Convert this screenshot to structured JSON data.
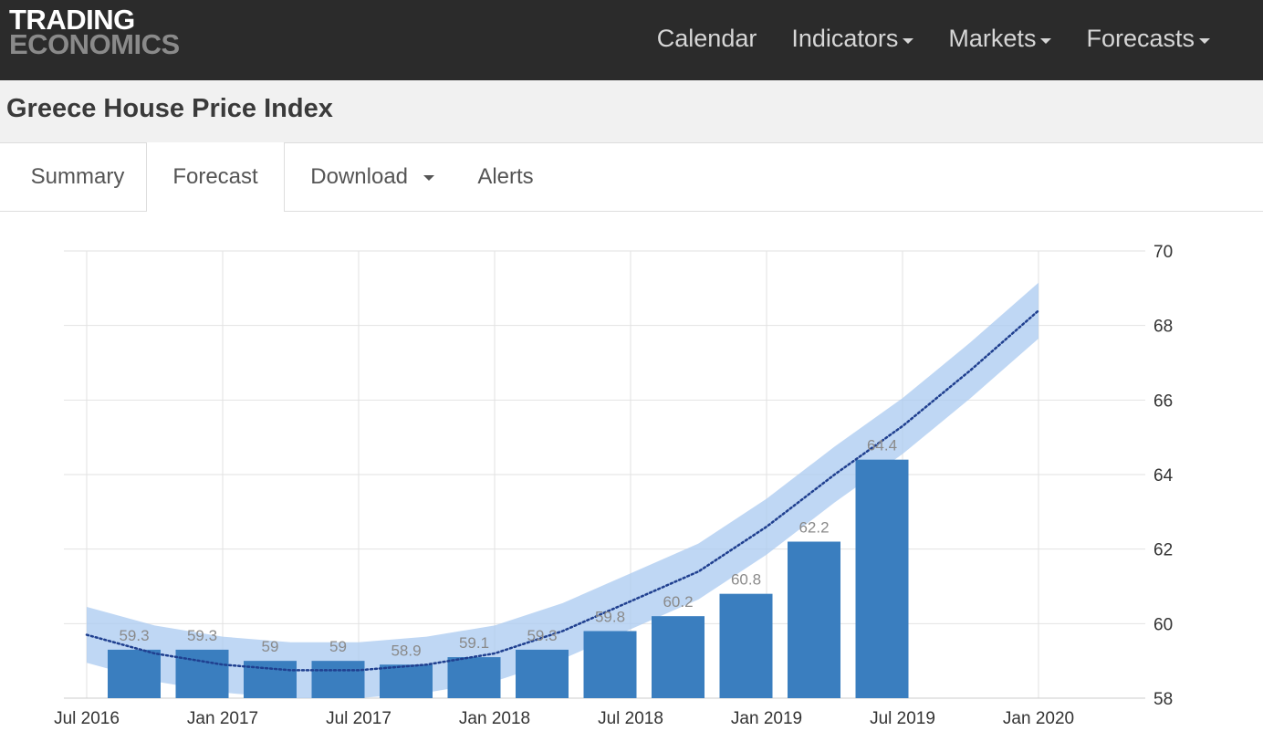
{
  "header": {
    "logo_top": "TRADING",
    "logo_bottom": "ECONOMICS",
    "nav": [
      {
        "label": "Calendar",
        "dropdown": false
      },
      {
        "label": "Indicators",
        "dropdown": true
      },
      {
        "label": "Markets",
        "dropdown": true
      },
      {
        "label": "Forecasts",
        "dropdown": true
      }
    ]
  },
  "page": {
    "title": "Greece House Price Index"
  },
  "tabs": [
    {
      "label": "Summary",
      "active": false
    },
    {
      "label": "Forecast",
      "active": true
    },
    {
      "label": "Download",
      "active": false,
      "dropdown": true
    },
    {
      "label": "Alerts",
      "active": false
    }
  ],
  "colors": {
    "bar": "#3a7ebf",
    "band": "#a9c9f0",
    "trend": "#1f3f8f",
    "grid": "#e2e2e2"
  },
  "chart_data": {
    "type": "bar",
    "x_ticks": [
      "Jul 2016",
      "Jan 2017",
      "Jul 2017",
      "Jan 2018",
      "Jul 2018",
      "Jan 2019",
      "Jul 2019",
      "Jan 2020"
    ],
    "y_ticks": [
      58,
      60,
      62,
      64,
      66,
      68,
      70
    ],
    "ylim": [
      58,
      70
    ],
    "y_axis_side": "right",
    "grid": true,
    "bars": [
      {
        "quarter": "2016-Q3",
        "value": 59.3,
        "label": "59.3"
      },
      {
        "quarter": "2016-Q4",
        "value": 59.3,
        "label": "59.3"
      },
      {
        "quarter": "2017-Q1",
        "value": 59.0,
        "label": "59"
      },
      {
        "quarter": "2017-Q2",
        "value": 59.0,
        "label": "59"
      },
      {
        "quarter": "2017-Q3",
        "value": 58.9,
        "label": "58.9"
      },
      {
        "quarter": "2017-Q4",
        "value": 59.1,
        "label": "59.1"
      },
      {
        "quarter": "2018-Q1",
        "value": 59.3,
        "label": "59.3"
      },
      {
        "quarter": "2018-Q2",
        "value": 59.8,
        "label": "59.8"
      },
      {
        "quarter": "2018-Q3",
        "value": 60.2,
        "label": "60.2"
      },
      {
        "quarter": "2018-Q4",
        "value": 60.8,
        "label": "60.8"
      },
      {
        "quarter": "2019-Q1",
        "value": 62.2,
        "label": "62.2"
      },
      {
        "quarter": "2019-Q2",
        "value": 64.4,
        "label": "64.4"
      }
    ],
    "trend": {
      "style": "dotted",
      "points": [
        {
          "quarter": "2016-Q3",
          "value": 59.7
        },
        {
          "quarter": "2016-Q4",
          "value": 59.2
        },
        {
          "quarter": "2017-Q1",
          "value": 58.9
        },
        {
          "quarter": "2017-Q2",
          "value": 58.75
        },
        {
          "quarter": "2017-Q3",
          "value": 58.75
        },
        {
          "quarter": "2017-Q4",
          "value": 58.9
        },
        {
          "quarter": "2018-Q1",
          "value": 59.2
        },
        {
          "quarter": "2018-Q2",
          "value": 59.8
        },
        {
          "quarter": "2018-Q3",
          "value": 60.6
        },
        {
          "quarter": "2018-Q4",
          "value": 61.4
        },
        {
          "quarter": "2019-Q1",
          "value": 62.6
        },
        {
          "quarter": "2019-Q2",
          "value": 64.0
        },
        {
          "quarter": "2019-Q3",
          "value": 65.3
        },
        {
          "quarter": "2019-Q4",
          "value": 66.8
        },
        {
          "quarter": "2020-Q1",
          "value": 68.4
        }
      ],
      "band_halfwidth": 0.75
    }
  }
}
